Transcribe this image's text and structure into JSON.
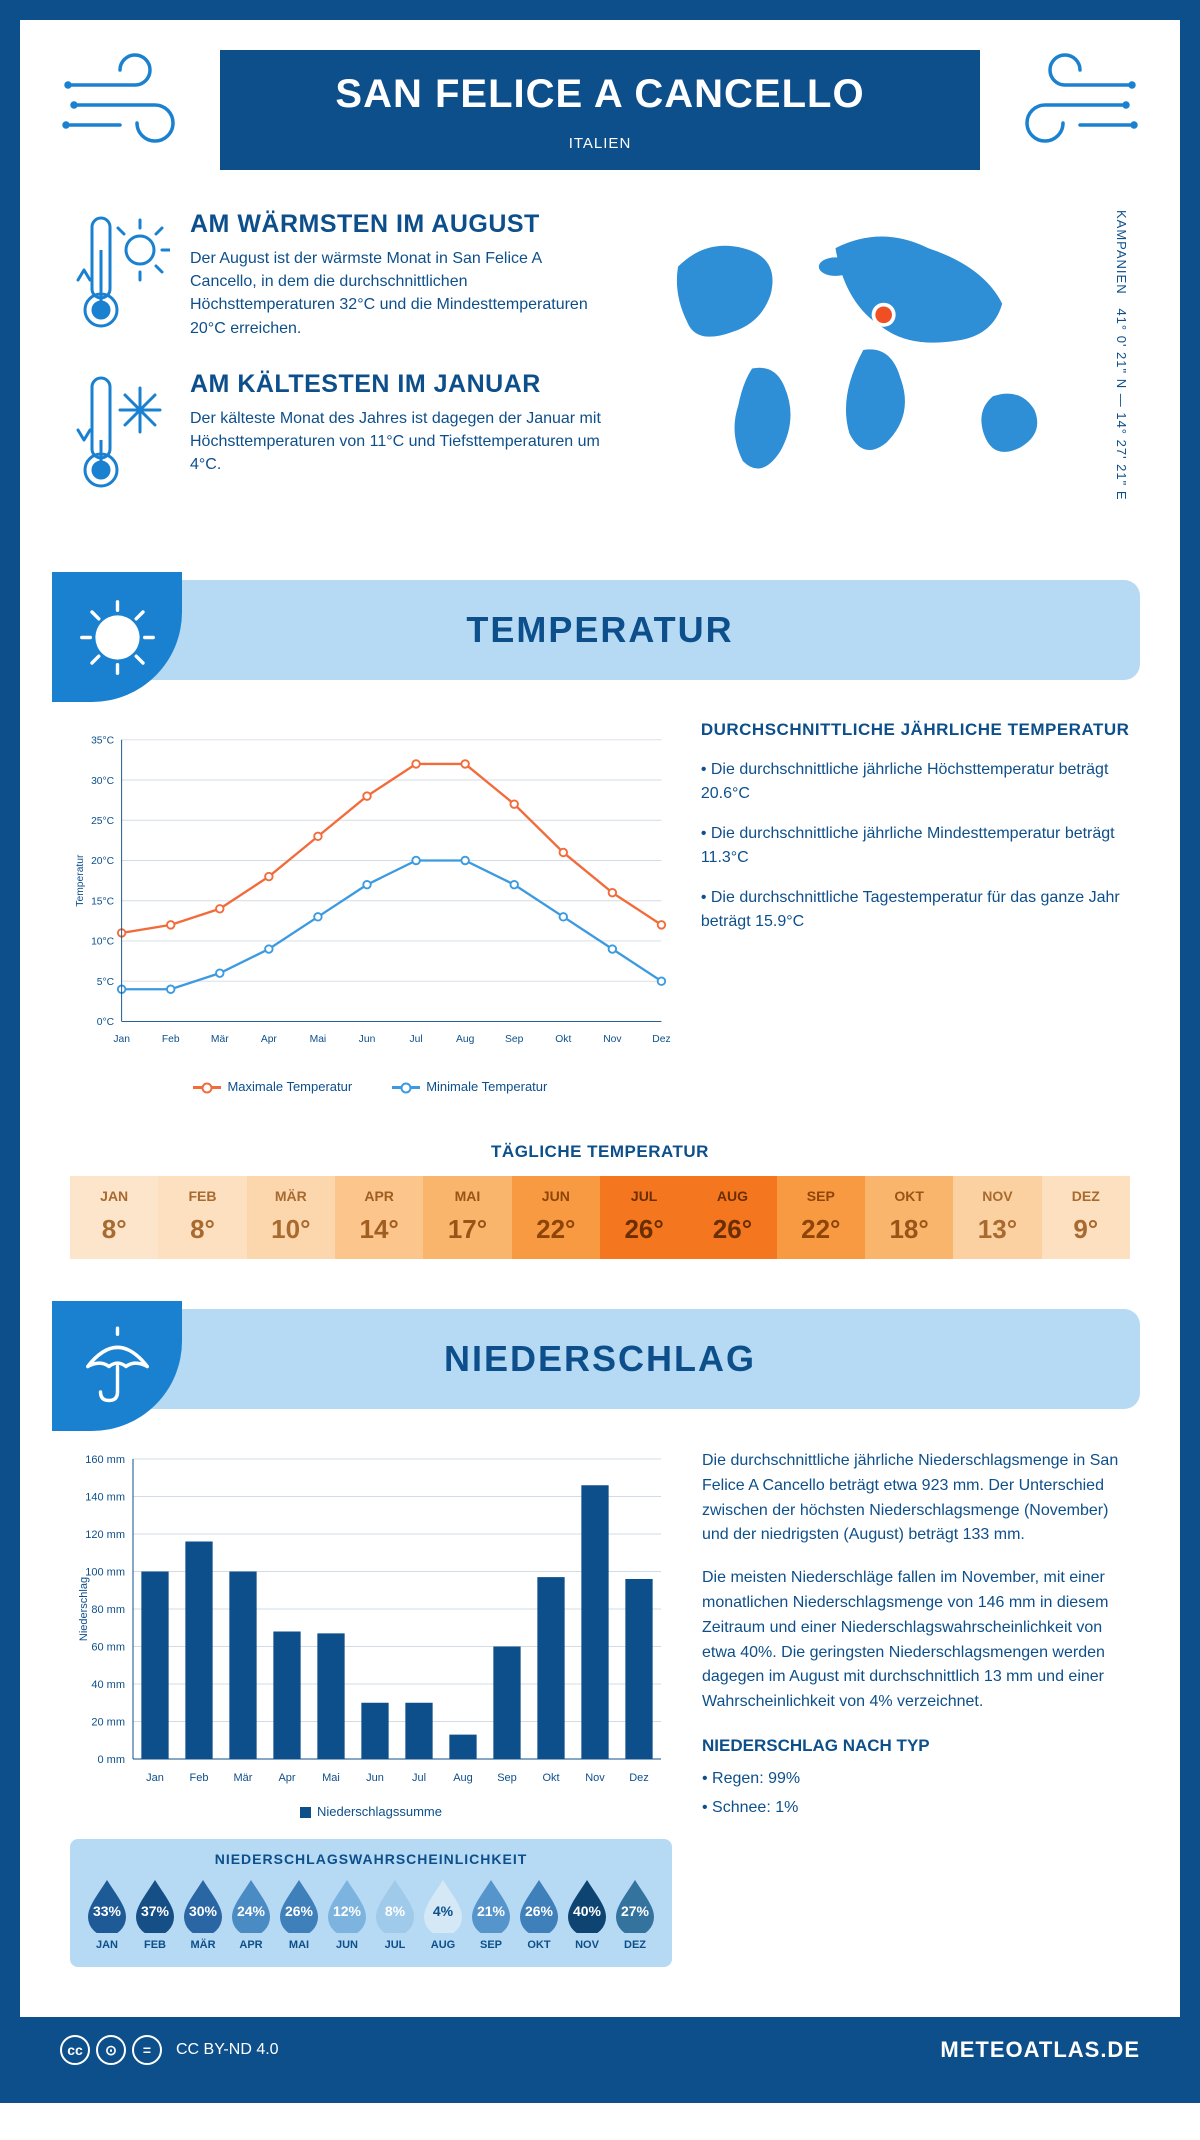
{
  "colors": {
    "primary": "#0d4f8b",
    "accent": "#1a81d1",
    "light_blue": "#b6d9f4",
    "orange_line": "#f26b3a",
    "blue_line": "#3b9ae0",
    "grid": "#d3dce5"
  },
  "header": {
    "title": "SAN FELICE A CANCELLO",
    "subtitle": "ITALIEN"
  },
  "intro": {
    "warm": {
      "heading": "AM WÄRMSTEN IM AUGUST",
      "text": "Der August ist der wärmste Monat in San Felice A Cancello, in dem die durchschnittlichen Höchsttemperaturen 32°C und die Mindesttemperaturen 20°C erreichen."
    },
    "cold": {
      "heading": "AM KÄLTESTEN IM JANUAR",
      "text": "Der kälteste Monat des Jahres ist dagegen der Januar mit Höchsttemperaturen von 11°C und Tiefsttemperaturen um 4°C."
    },
    "coords": "41° 0' 21\" N — 14° 27' 21\" E",
    "region": "KAMPANIEN"
  },
  "temperature": {
    "banner": "TEMPERATUR",
    "chart": {
      "type": "line",
      "months": [
        "Jan",
        "Feb",
        "Mär",
        "Apr",
        "Mai",
        "Jun",
        "Jul",
        "Aug",
        "Sep",
        "Okt",
        "Nov",
        "Dez"
      ],
      "max": [
        11,
        12,
        14,
        18,
        23,
        28,
        32,
        32,
        27,
        21,
        16,
        12
      ],
      "min": [
        4,
        4,
        6,
        9,
        13,
        17,
        20,
        20,
        17,
        13,
        9,
        5
      ],
      "ylim": [
        0,
        35
      ],
      "ytick_step": 5,
      "y_unit": "°C",
      "y_axis_label": "Temperatur",
      "max_color": "#f26b3a",
      "min_color": "#3b9ae0",
      "grid_color": "#d3dce5",
      "line_width": 2.5,
      "legend_max": "Maximale Temperatur",
      "legend_min": "Minimale Temperatur"
    },
    "facts": {
      "heading": "DURCHSCHNITTLICHE JÄHRLICHE TEMPERATUR",
      "bullets": [
        "• Die durchschnittliche jährliche Höchsttemperatur beträgt 20.6°C",
        "• Die durchschnittliche jährliche Mindesttemperatur beträgt 11.3°C",
        "• Die durchschnittliche Tagestemperatur für das ganze Jahr beträgt 15.9°C"
      ]
    },
    "daily": {
      "heading": "TÄGLICHE TEMPERATUR",
      "months": [
        "JAN",
        "FEB",
        "MÄR",
        "APR",
        "MAI",
        "JUN",
        "JUL",
        "AUG",
        "SEP",
        "OKT",
        "NOV",
        "DEZ"
      ],
      "values": [
        "8°",
        "8°",
        "10°",
        "14°",
        "17°",
        "22°",
        "26°",
        "26°",
        "22°",
        "18°",
        "13°",
        "9°"
      ],
      "bg_colors": [
        "#fde5cc",
        "#fde0c0",
        "#fcd7ae",
        "#fbc58b",
        "#fab56c",
        "#f79a41",
        "#f4761f",
        "#f4761f",
        "#f79a41",
        "#fab56c",
        "#fcd1a2",
        "#fde0c0"
      ],
      "text_colors": [
        "#a86a2e",
        "#a86a2e",
        "#a86a2e",
        "#a05e20",
        "#9a5418",
        "#8f4408",
        "#6b2e00",
        "#6b2e00",
        "#8f4408",
        "#9a5418",
        "#a86a2e",
        "#a86a2e"
      ]
    }
  },
  "precipitation": {
    "banner": "NIEDERSCHLAG",
    "chart": {
      "type": "bar",
      "months": [
        "Jan",
        "Feb",
        "Mär",
        "Apr",
        "Mai",
        "Jun",
        "Jul",
        "Aug",
        "Sep",
        "Okt",
        "Nov",
        "Dez"
      ],
      "values": [
        100,
        116,
        100,
        68,
        67,
        30,
        30,
        13,
        60,
        97,
        146,
        96
      ],
      "ylim": [
        0,
        160
      ],
      "ytick_step": 20,
      "y_unit": " mm",
      "y_axis_label": "Niederschlag",
      "bar_color": "#0d4f8b",
      "grid_color": "#d3dce5",
      "legend": "Niederschlagssumme"
    },
    "text": {
      "p1": "Die durchschnittliche jährliche Niederschlagsmenge in San Felice A Cancello beträgt etwa 923 mm. Der Unterschied zwischen der höchsten Niederschlagsmenge (November) und der niedrigsten (August) beträgt 133 mm.",
      "p2": "Die meisten Niederschläge fallen im November, mit einer monatlichen Niederschlagsmenge von 146 mm in diesem Zeitraum und einer Niederschlagswahrscheinlichkeit von etwa 40%. Die geringsten Niederschlagsmengen werden dagegen im August mit durchschnittlich 13 mm und einer Wahrscheinlichkeit von 4% verzeichnet.",
      "type_heading": "NIEDERSCHLAG NACH TYP",
      "type_bullets": [
        "• Regen: 99%",
        "• Schnee: 1%"
      ]
    },
    "probability": {
      "heading": "NIEDERSCHLAGSWAHRSCHEINLICHKEIT",
      "months": [
        "JAN",
        "FEB",
        "MÄR",
        "APR",
        "MAI",
        "JUN",
        "JUL",
        "AUG",
        "SEP",
        "OKT",
        "NOV",
        "DEZ"
      ],
      "percent": [
        "33%",
        "37%",
        "30%",
        "24%",
        "26%",
        "12%",
        "8%",
        "4%",
        "21%",
        "26%",
        "40%",
        "27%"
      ],
      "values": [
        33,
        37,
        30,
        24,
        26,
        12,
        8,
        4,
        21,
        26,
        40,
        27
      ],
      "colors": [
        "#1e5a96",
        "#164e86",
        "#2966a3",
        "#4a8bc4",
        "#3f7fba",
        "#7cb4df",
        "#a0cae9",
        "#d4e8f6",
        "#5695cb",
        "#3f7fba",
        "#0d4471",
        "#35739f"
      ],
      "text_colors": [
        "#fff",
        "#fff",
        "#fff",
        "#fff",
        "#fff",
        "#fff",
        "#fff",
        "#0d4f8b",
        "#fff",
        "#fff",
        "#fff",
        "#fff"
      ]
    }
  },
  "footer": {
    "license": "CC BY-ND 4.0",
    "site": "METEOATLAS.DE"
  }
}
